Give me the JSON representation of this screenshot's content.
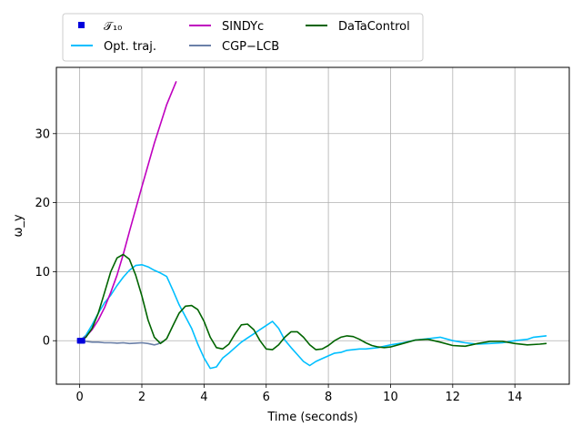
{
  "chart_data": {
    "type": "line",
    "xlabel": "Time (seconds)",
    "ylabel": "ω_y",
    "xlim": [
      -0.75,
      15.75
    ],
    "ylim": [
      -6.3,
      39.6
    ],
    "xticks": [
      0,
      2,
      4,
      6,
      8,
      10,
      12,
      14
    ],
    "yticks": [
      0,
      10,
      20,
      30
    ],
    "grid": true,
    "legend_placement": "top-left, above plot",
    "series": [
      {
        "name": "𝒯₁₀",
        "kind": "markers",
        "color": "#0000dd",
        "x": [
          0.0,
          0.01,
          0.02,
          0.03,
          0.04,
          0.05,
          0.06,
          0.07,
          0.08,
          0.09
        ],
        "y": [
          0,
          0,
          0,
          0,
          0,
          0,
          0,
          0,
          0,
          0
        ]
      },
      {
        "name": "Opt. traj.",
        "kind": "line",
        "color": "#00bfff",
        "x": [
          0.0,
          0.2,
          0.4,
          0.6,
          0.8,
          1.0,
          1.2,
          1.4,
          1.6,
          1.8,
          2.0,
          2.2,
          2.4,
          2.6,
          2.8,
          3.0,
          3.2,
          3.4,
          3.6,
          3.8,
          4.0,
          4.2,
          4.4,
          4.6,
          4.8,
          5.0,
          5.2,
          5.4,
          5.6,
          5.8,
          6.0,
          6.2,
          6.4,
          6.6,
          6.8,
          7.0,
          7.2,
          7.4,
          7.6,
          7.8,
          8.0,
          8.2,
          8.4,
          8.6,
          8.8,
          9.0,
          9.2,
          9.4,
          9.6,
          9.8,
          10.0,
          10.4,
          10.8,
          11.2,
          11.6,
          12.0,
          12.4,
          12.8,
          13.2,
          13.6,
          14.0,
          14.4,
          14.6,
          14.8,
          15.0
        ],
        "y": [
          0.0,
          0.8,
          2.3,
          4.0,
          5.5,
          6.6,
          8.0,
          9.2,
          10.2,
          10.9,
          11.0,
          10.7,
          10.2,
          9.8,
          9.3,
          7.3,
          5.2,
          3.5,
          1.8,
          -0.5,
          -2.5,
          -4.0,
          -3.8,
          -2.5,
          -1.8,
          -1.0,
          -0.2,
          0.4,
          1.0,
          1.6,
          2.2,
          2.8,
          1.8,
          0.1,
          -1.0,
          -2.0,
          -3.0,
          -3.6,
          -3.0,
          -2.6,
          -2.2,
          -1.8,
          -1.7,
          -1.4,
          -1.3,
          -1.2,
          -1.2,
          -1.1,
          -1.0,
          -0.8,
          -0.6,
          -0.3,
          0.1,
          0.3,
          0.5,
          0.0,
          -0.3,
          -0.5,
          -0.4,
          -0.3,
          0.0,
          0.2,
          0.5,
          0.6,
          0.7
        ]
      },
      {
        "name": "SINDYc",
        "kind": "line",
        "color": "#bf00bf",
        "x": [
          0.0,
          0.2,
          0.4,
          0.6,
          0.8,
          1.0,
          1.2,
          1.4,
          1.6,
          2.0,
          2.4,
          2.8,
          3.1
        ],
        "y": [
          0.0,
          0.6,
          1.6,
          3.0,
          4.8,
          7.0,
          9.5,
          12.5,
          15.8,
          22.3,
          28.6,
          34.2,
          37.5
        ]
      },
      {
        "name": "CGP−LCB",
        "kind": "line",
        "color": "#6b80a8",
        "x": [
          0.0,
          0.2,
          0.4,
          0.6,
          0.8,
          1.0,
          1.2,
          1.4,
          1.6,
          1.8,
          2.0,
          2.2,
          2.4,
          2.5,
          2.6,
          2.7
        ],
        "y": [
          0.0,
          -0.1,
          -0.2,
          -0.2,
          -0.3,
          -0.3,
          -0.35,
          -0.3,
          -0.4,
          -0.35,
          -0.3,
          -0.4,
          -0.6,
          -0.5,
          -0.3,
          -0.1
        ]
      },
      {
        "name": "DaTaControl",
        "kind": "line",
        "color": "#006400",
        "x": [
          0.0,
          0.2,
          0.4,
          0.6,
          0.8,
          1.0,
          1.2,
          1.4,
          1.6,
          1.8,
          2.0,
          2.2,
          2.4,
          2.6,
          2.8,
          3.0,
          3.2,
          3.4,
          3.6,
          3.8,
          4.0,
          4.2,
          4.4,
          4.6,
          4.8,
          5.0,
          5.2,
          5.4,
          5.6,
          5.8,
          6.0,
          6.2,
          6.4,
          6.6,
          6.8,
          7.0,
          7.2,
          7.4,
          7.6,
          7.8,
          8.0,
          8.2,
          8.4,
          8.6,
          8.8,
          9.0,
          9.2,
          9.4,
          9.6,
          9.8,
          10.0,
          10.4,
          10.8,
          11.2,
          11.6,
          12.0,
          12.4,
          12.8,
          13.2,
          13.6,
          14.0,
          14.4,
          14.8,
          15.0
        ],
        "y": [
          0.0,
          0.5,
          1.8,
          4.0,
          7.0,
          10.0,
          12.0,
          12.5,
          11.8,
          9.5,
          6.5,
          3.0,
          0.5,
          -0.4,
          0.3,
          2.2,
          4.0,
          5.0,
          5.1,
          4.5,
          2.8,
          0.5,
          -1.0,
          -1.2,
          -0.5,
          1.0,
          2.3,
          2.4,
          1.6,
          0.0,
          -1.2,
          -1.3,
          -0.6,
          0.5,
          1.3,
          1.3,
          0.5,
          -0.6,
          -1.3,
          -1.2,
          -0.7,
          0.0,
          0.5,
          0.7,
          0.6,
          0.2,
          -0.3,
          -0.7,
          -0.9,
          -1.0,
          -0.9,
          -0.4,
          0.1,
          0.2,
          -0.2,
          -0.7,
          -0.8,
          -0.4,
          -0.1,
          -0.1,
          -0.4,
          -0.6,
          -0.5,
          -0.4
        ]
      }
    ]
  }
}
